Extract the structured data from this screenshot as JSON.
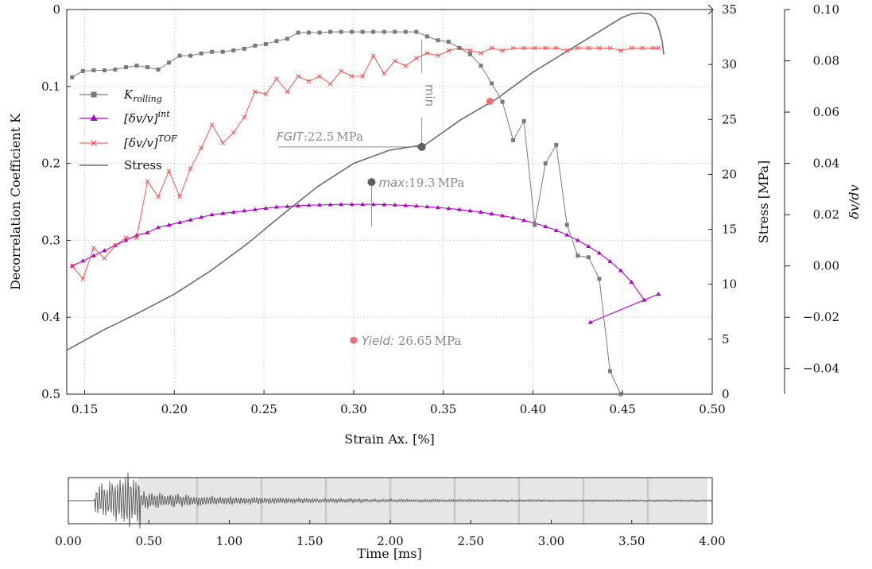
{
  "chart_data": [
    {
      "type": "line",
      "xlabel": "Strain Ax. [%]",
      "xlim": [
        0.14,
        0.5
      ],
      "xticks": [
        "0.15",
        "0.20",
        "0.25",
        "0.30",
        "0.35",
        "0.40",
        "0.45",
        "0.50"
      ],
      "y_left": {
        "label": "Decorrelation Coefficient K",
        "label_var": "K",
        "ylim": [
          0,
          0.5
        ],
        "reversed": true,
        "ticks": [
          "0",
          "0.1",
          "0.2",
          "0.3",
          "0.4",
          "0.5"
        ]
      },
      "y_right1": {
        "label": "Stress [MPa]",
        "ylim": [
          0,
          35
        ],
        "ticks": [
          "0",
          "5",
          "10",
          "15",
          "20",
          "25",
          "30",
          "35"
        ]
      },
      "y_right2": {
        "label": "δv/dv",
        "ylim": [
          -0.05,
          0.1
        ],
        "ticks": [
          "0.10",
          "0.08",
          "0.06",
          "0.04",
          "0.02",
          "0.00",
          "−0.02",
          "−0.04"
        ]
      },
      "grid": true,
      "legend_position": "upper-left",
      "series": [
        {
          "name": "K_rolling",
          "legend_label": "K",
          "legend_sub": "rolling",
          "color": "#7a7a7a",
          "marker": "square",
          "axis": "left",
          "x": [
            0.143,
            0.149,
            0.155,
            0.161,
            0.167,
            0.173,
            0.179,
            0.185,
            0.191,
            0.197,
            0.203,
            0.209,
            0.215,
            0.221,
            0.227,
            0.233,
            0.239,
            0.245,
            0.251,
            0.257,
            0.263,
            0.269,
            0.275,
            0.281,
            0.287,
            0.293,
            0.299,
            0.305,
            0.311,
            0.317,
            0.323,
            0.329,
            0.335,
            0.341,
            0.347,
            0.353,
            0.359,
            0.365,
            0.371,
            0.377,
            0.383,
            0.389,
            0.395,
            0.401,
            0.407,
            0.413,
            0.419,
            0.425,
            0.431,
            0.437,
            0.443,
            0.449,
            0.455,
            0.46
          ],
          "y": [
            0.088,
            0.08,
            0.079,
            0.079,
            0.078,
            0.075,
            0.073,
            0.075,
            0.078,
            0.069,
            0.06,
            0.06,
            0.057,
            0.055,
            0.055,
            0.053,
            0.051,
            0.047,
            0.045,
            0.041,
            0.038,
            0.03,
            0.03,
            0.03,
            0.029,
            0.029,
            0.029,
            0.029,
            0.029,
            0.029,
            0.029,
            0.029,
            0.029,
            0.035,
            0.04,
            0.042,
            0.05,
            0.058,
            0.073,
            0.096,
            0.12,
            0.17,
            0.145,
            0.28,
            0.2,
            0.176,
            0.28,
            0.32,
            0.322,
            0.35,
            0.47,
            0.5,
            0.51,
            0.52
          ]
        },
        {
          "name": "[δv/v]^int",
          "legend_label": "[δv/v]",
          "legend_sup": "int",
          "color": "#b000c8",
          "marker": "triangle",
          "axis": "right2",
          "x": [
            0.143,
            0.149,
            0.155,
            0.161,
            0.167,
            0.173,
            0.179,
            0.185,
            0.191,
            0.197,
            0.203,
            0.209,
            0.215,
            0.221,
            0.227,
            0.233,
            0.239,
            0.245,
            0.251,
            0.257,
            0.263,
            0.269,
            0.275,
            0.281,
            0.287,
            0.293,
            0.299,
            0.305,
            0.311,
            0.317,
            0.323,
            0.329,
            0.335,
            0.341,
            0.347,
            0.353,
            0.359,
            0.365,
            0.371,
            0.377,
            0.383,
            0.389,
            0.395,
            0.401,
            0.407,
            0.413,
            0.419,
            0.425,
            0.431,
            0.437,
            0.443,
            0.449,
            0.455,
            0.462,
            0.47,
            0.432
          ],
          "y": [
            0.0,
            0.002,
            0.004,
            0.006,
            0.008,
            0.01,
            0.012,
            0.013,
            0.015,
            0.016,
            0.017,
            0.018,
            0.019,
            0.02,
            0.0205,
            0.021,
            0.0215,
            0.022,
            0.0225,
            0.023,
            0.0232,
            0.0235,
            0.0237,
            0.0238,
            0.0239,
            0.024,
            0.024,
            0.024,
            0.024,
            0.0239,
            0.0238,
            0.0236,
            0.0234,
            0.0231,
            0.0228,
            0.0224,
            0.022,
            0.0215,
            0.021,
            0.0203,
            0.0196,
            0.0188,
            0.0178,
            0.0167,
            0.0154,
            0.0139,
            0.0121,
            0.01,
            0.0076,
            0.005,
            0.0018,
            -0.0018,
            -0.0063,
            -0.0133,
            -0.011,
            -0.022
          ]
        },
        {
          "name": "[δv/v]^TOF",
          "legend_label": "[δv/v]",
          "legend_sup": "TOF",
          "color": "#ff4040",
          "marker": "x",
          "axis": "right2",
          "x": [
            0.143,
            0.149,
            0.155,
            0.161,
            0.167,
            0.173,
            0.179,
            0.185,
            0.191,
            0.197,
            0.203,
            0.209,
            0.215,
            0.221,
            0.227,
            0.233,
            0.239,
            0.245,
            0.251,
            0.257,
            0.263,
            0.269,
            0.275,
            0.281,
            0.287,
            0.293,
            0.299,
            0.305,
            0.311,
            0.317,
            0.323,
            0.329,
            0.335,
            0.341,
            0.347,
            0.353,
            0.359,
            0.365,
            0.371,
            0.377,
            0.383,
            0.389,
            0.395,
            0.401,
            0.407,
            0.413,
            0.419,
            0.425,
            0.431,
            0.437,
            0.443,
            0.449,
            0.455,
            0.461,
            0.467,
            0.47
          ],
          "y": [
            0.0,
            -0.005,
            0.007,
            0.003,
            0.008,
            0.011,
            0.011,
            0.033,
            0.027,
            0.037,
            0.027,
            0.038,
            0.046,
            0.055,
            0.048,
            0.052,
            0.058,
            0.068,
            0.067,
            0.073,
            0.068,
            0.074,
            0.072,
            0.074,
            0.071,
            0.076,
            0.074,
            0.074,
            0.082,
            0.075,
            0.08,
            0.078,
            0.081,
            0.083,
            0.082,
            0.084,
            0.085,
            0.084,
            0.083,
            0.085,
            0.084,
            0.085,
            0.085,
            0.085,
            0.085,
            0.085,
            0.084,
            0.085,
            0.085,
            0.085,
            0.085,
            0.084,
            0.085,
            0.085,
            0.085,
            0.085
          ]
        },
        {
          "name": "Stress",
          "color": "#6b6b6b",
          "marker": "none",
          "axis": "right1",
          "x": [
            0.14,
            0.16,
            0.18,
            0.2,
            0.22,
            0.24,
            0.26,
            0.28,
            0.3,
            0.32,
            0.34,
            0.36,
            0.38,
            0.4,
            0.42,
            0.44,
            0.45,
            0.455,
            0.46,
            0.465,
            0.468,
            0.47,
            0.472,
            0.473
          ],
          "y": [
            4.0,
            5.8,
            7.4,
            9.1,
            11.2,
            13.6,
            16.3,
            18.9,
            21.0,
            22.2,
            22.7,
            25.0,
            26.9,
            29.3,
            31.3,
            33.3,
            34.3,
            34.6,
            34.7,
            34.6,
            34.2,
            33.4,
            32.2,
            30.9
          ]
        }
      ],
      "annotations": {
        "min_label": "min",
        "fgit": {
          "prefix": "FGIT",
          "value": ":22.5",
          "unit": "MPa",
          "x": 0.338,
          "y": 22.5,
          "color": "#5e5e5e"
        },
        "max": {
          "prefix": "max",
          "value": ":19.3",
          "unit": "MPa",
          "x": 0.31,
          "y": 19.3,
          "color": "#5e5e5e"
        },
        "yield": {
          "prefix": "Yield:",
          "value": "26.65",
          "unit": "MPa",
          "x": 0.3,
          "y_left": 0.43,
          "color": "#f07070"
        },
        "red_point_stress": {
          "x": 0.376,
          "y": 26.65
        }
      }
    },
    {
      "type": "line",
      "xlabel": "Time [ms]",
      "xlim": [
        0,
        4
      ],
      "xticks": [
        "0.00",
        "0.50",
        "1.00",
        "1.50",
        "2.00",
        "2.50",
        "3.00",
        "3.50",
        "4.00"
      ],
      "shaded_range": [
        0.43,
        3.97
      ],
      "window_markers": [
        0.8,
        1.2,
        1.6,
        2.0,
        2.4,
        2.8,
        3.2,
        3.6
      ],
      "series": [
        {
          "name": "waveform",
          "color": "#555555"
        }
      ]
    }
  ]
}
